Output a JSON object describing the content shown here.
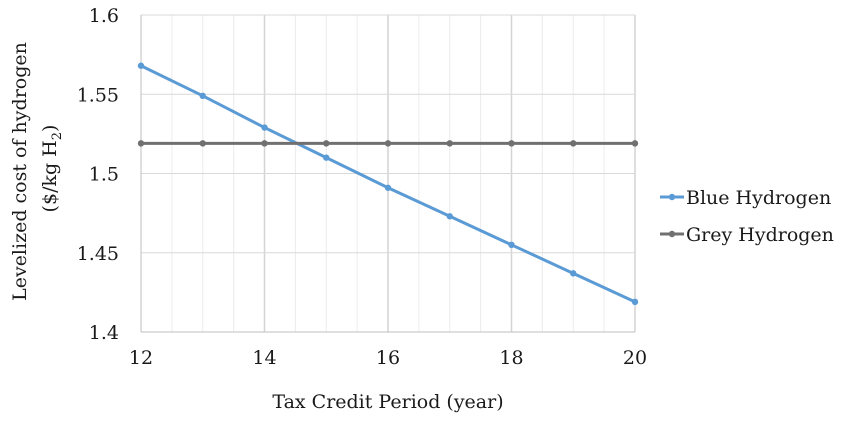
{
  "chart_data": {
    "type": "line",
    "title": "",
    "xlabel": "Tax Credit Period (year)",
    "ylabel": {
      "line1": "Levelized cost of hydrogen",
      "line2_prefix": "($/kg H",
      "line2_sub": "2",
      "line2_suffix": ")"
    },
    "xlim": [
      12,
      20
    ],
    "ylim": [
      1.4,
      1.6
    ],
    "x_ticks": [
      12,
      14,
      16,
      18,
      20
    ],
    "x_tick_labels": [
      "12",
      "14",
      "16",
      "18",
      "20"
    ],
    "x_minor_step": 0.5,
    "y_ticks": [
      1.4,
      1.45,
      1.5,
      1.55,
      1.6
    ],
    "y_tick_labels": [
      "1.4",
      "1.45",
      "1.5",
      "1.55",
      "1.6"
    ],
    "grid": true,
    "legend_position": "right",
    "series": [
      {
        "name": "Blue Hydrogen",
        "color": "#5b9bd5",
        "x": [
          12,
          13,
          14,
          15,
          16,
          17,
          18,
          19,
          20
        ],
        "y": [
          1.568,
          1.549,
          1.529,
          1.51,
          1.491,
          1.473,
          1.455,
          1.437,
          1.419
        ]
      },
      {
        "name": "Grey Hydrogen",
        "color": "#707070",
        "x": [
          12,
          13,
          14,
          15,
          16,
          17,
          18,
          19,
          20
        ],
        "y": [
          1.519,
          1.519,
          1.519,
          1.519,
          1.519,
          1.519,
          1.519,
          1.519,
          1.519
        ]
      }
    ]
  }
}
